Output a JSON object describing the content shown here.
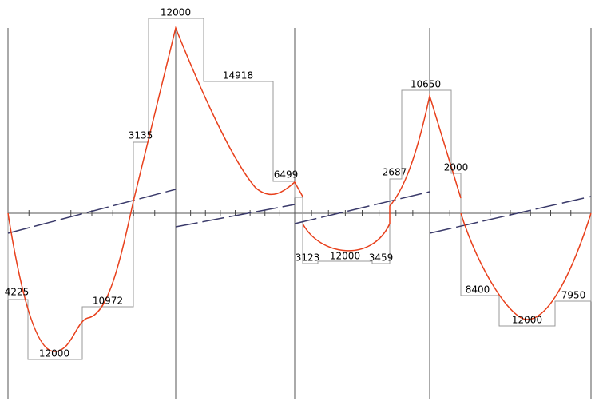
{
  "labels": [
    4225,
    12000,
    10972,
    3135,
    12000,
    14918,
    6499,
    3123,
    12000,
    3459,
    2687,
    10650,
    2000,
    8400,
    12000,
    7950
  ]
}
